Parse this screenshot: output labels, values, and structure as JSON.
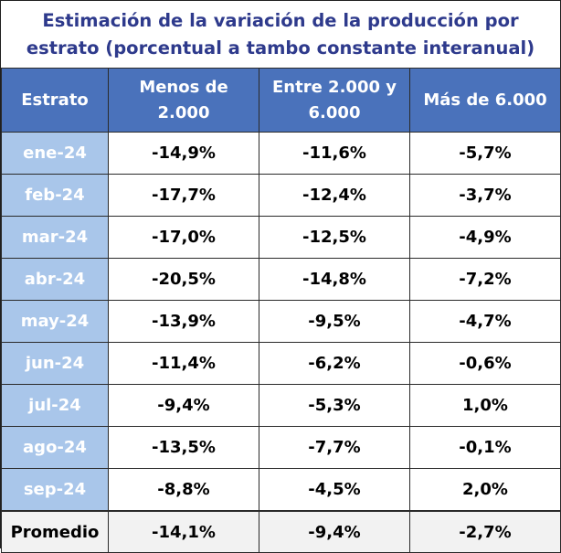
{
  "title_lines": [
    "Estimación de la variación de la producción por",
    "estrato (porcentual a tambo constante interanual)"
  ],
  "columns": [
    {
      "line1": "Estrato",
      "line2": ""
    },
    {
      "line1": "Menos de",
      "line2": "2.000"
    },
    {
      "line1": "Entre 2.000 y",
      "line2": "6.000"
    },
    {
      "line1": "Más de 6.000",
      "line2": ""
    }
  ],
  "rows": [
    {
      "month": "ene-24",
      "menos_2000": "-14,9%",
      "entre_2000_6000": "-11,6%",
      "mas_6000": "-5,7%"
    },
    {
      "month": "feb-24",
      "menos_2000": "-17,7%",
      "entre_2000_6000": "-12,4%",
      "mas_6000": "-3,7%"
    },
    {
      "month": "mar-24",
      "menos_2000": "-17,0%",
      "entre_2000_6000": "-12,5%",
      "mas_6000": "-4,9%"
    },
    {
      "month": "abr-24",
      "menos_2000": "-20,5%",
      "entre_2000_6000": "-14,8%",
      "mas_6000": "-7,2%"
    },
    {
      "month": "may-24",
      "menos_2000": "-13,9%",
      "entre_2000_6000": "-9,5%",
      "mas_6000": "-4,7%"
    },
    {
      "month": "jun-24",
      "menos_2000": "-11,4%",
      "entre_2000_6000": "-6,2%",
      "mas_6000": "-0,6%"
    },
    {
      "month": "jul-24",
      "menos_2000": "-9,4%",
      "entre_2000_6000": "-5,3%",
      "mas_6000": "1,0%"
    },
    {
      "month": "ago-24",
      "menos_2000": "-13,5%",
      "entre_2000_6000": "-7,7%",
      "mas_6000": "-0,1%"
    },
    {
      "month": "sep-24",
      "menos_2000": "-8,8%",
      "entre_2000_6000": "-4,5%",
      "mas_6000": "2,0%"
    }
  ],
  "average": {
    "label": "Promedio",
    "menos_2000": "-14,1%",
    "entre_2000_6000": "-9,4%",
    "mas_6000": "-2,7%"
  },
  "colors": {
    "title": "#2e3a8c",
    "header_bg": "#4a72bb",
    "month_bg": "#a9c6ea",
    "average_bg": "#f2f2f2"
  }
}
